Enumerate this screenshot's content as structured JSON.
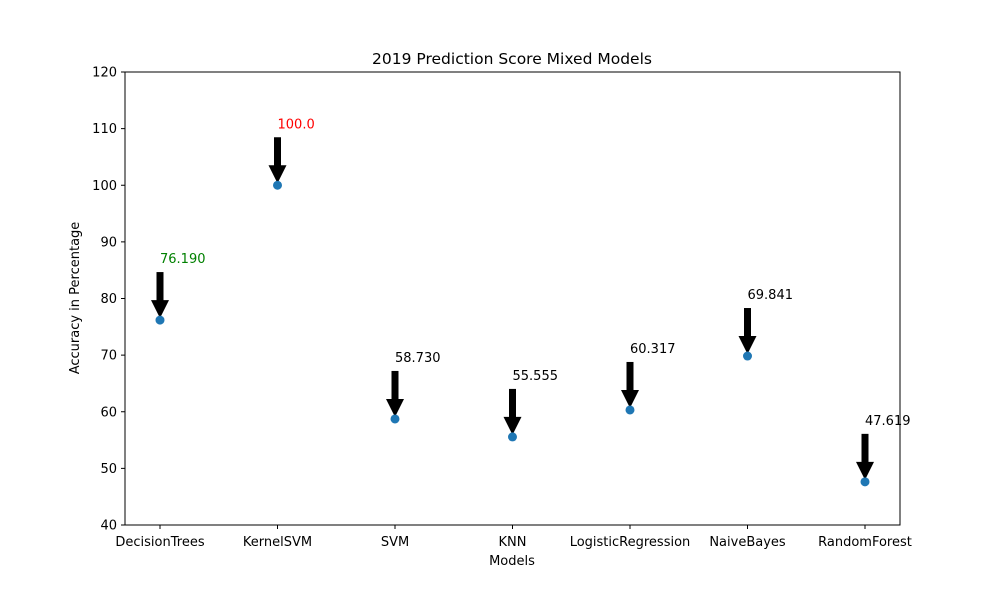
{
  "chart_data": {
    "type": "scatter",
    "title": "2019 Prediction Score Mixed Models",
    "xlabel": "Models",
    "ylabel": "Accuracy in Percentage",
    "categories": [
      "DecisionTrees",
      "KernelSVM",
      "SVM",
      "KNN",
      "LogisticRegression",
      "NaiveBayes",
      "RandomForest"
    ],
    "values": [
      76.19,
      100.0,
      58.73,
      55.555,
      60.317,
      69.841,
      47.619
    ],
    "ylim": [
      40,
      120
    ],
    "yticks": [
      40,
      50,
      60,
      70,
      80,
      90,
      100,
      110,
      120
    ],
    "grid": false,
    "marker_color": "#1f77b4",
    "annotations": [
      {
        "text": "76.190",
        "color": "#008000"
      },
      {
        "text": "100.0",
        "color": "#ff0000"
      },
      {
        "text": "58.730",
        "color": "#000000"
      },
      {
        "text": "55.555",
        "color": "#000000"
      },
      {
        "text": "60.317",
        "color": "#000000"
      },
      {
        "text": "69.841",
        "color": "#000000"
      },
      {
        "text": "47.619",
        "color": "#000000"
      }
    ]
  }
}
